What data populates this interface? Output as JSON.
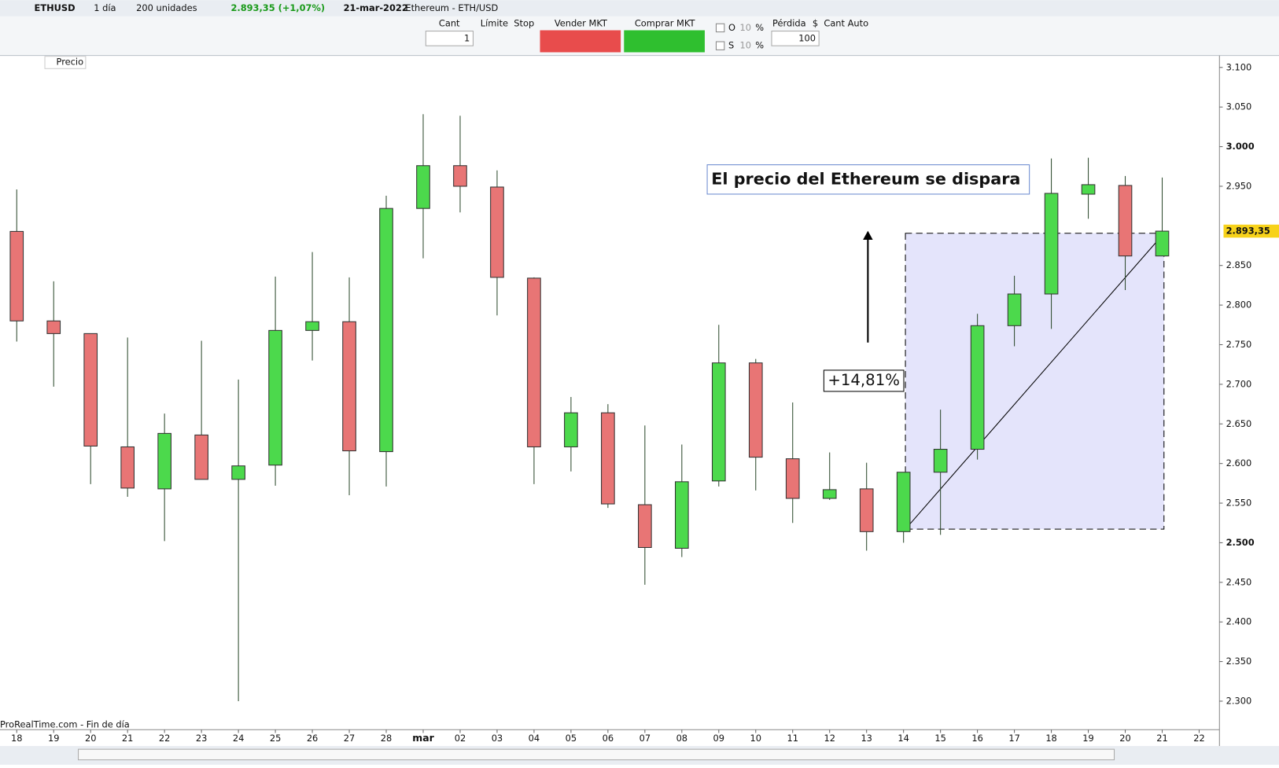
{
  "toolbar": {
    "symbol": "ETHUSD",
    "period": "1 día",
    "units": "200 unidades",
    "quote": "2.893,35 (+1,07%)",
    "date": "21-mar-2022",
    "instrument": "Ethereum - ETH/USD",
    "qty_label": "Cant",
    "qty": "1",
    "limit": "Límite",
    "stop": "Stop",
    "sell": "Vender MKT",
    "buy": "Comprar MKT",
    "o": "O",
    "o_pct": "10",
    "o_unit": "%",
    "s": "S",
    "s_pct": "10",
    "s_unit": "%",
    "loss": "Pérdida",
    "currency": "$",
    "loss_value": "100",
    "auto_qty": "Cant Auto",
    "price_tab": "Precio"
  },
  "chart_data": {
    "type": "candlestick",
    "categories": [
      "18",
      "19",
      "20",
      "21",
      "22",
      "23",
      "24",
      "25",
      "26",
      "27",
      "28",
      "mar",
      "02",
      "03",
      "04",
      "05",
      "06",
      "07",
      "08",
      "09",
      "10",
      "11",
      "12",
      "13",
      "14",
      "15",
      "16",
      "17",
      "18",
      "19",
      "20",
      "21",
      "22"
    ],
    "open": [
      2893,
      2780,
      2764,
      2621,
      2568,
      2636,
      2580,
      2598,
      2768,
      2779,
      2615,
      2922,
      2976,
      2949,
      2834,
      2621,
      2664,
      2548,
      2493,
      2578,
      2727,
      2606,
      2556,
      2568,
      2514,
      2589,
      2618,
      2774,
      2814,
      2940,
      2951,
      2862,
      null
    ],
    "high": [
      2946,
      2830,
      2764,
      2759,
      2663,
      2755,
      2706,
      2836,
      2867,
      2835,
      2938,
      3041,
      3039,
      2970,
      2835,
      2684,
      2675,
      2648,
      2624,
      2775,
      2732,
      2677,
      2614,
      2601,
      2589,
      2668,
      2789,
      2837,
      2985,
      2986,
      2963,
      2961,
      null
    ],
    "low": [
      2754,
      2697,
      2574,
      2558,
      2502,
      2580,
      2300,
      2572,
      2730,
      2560,
      2571,
      2859,
      2917,
      2787,
      2574,
      2590,
      2544,
      2447,
      2482,
      2571,
      2566,
      2525,
      2554,
      2490,
      2500,
      2510,
      2605,
      2748,
      2770,
      2909,
      2819,
      2862,
      null
    ],
    "close": [
      2780,
      2764,
      2622,
      2569,
      2638,
      2580,
      2597,
      2768,
      2779,
      2616,
      2922,
      2976,
      2950,
      2835,
      2621,
      2664,
      2549,
      2494,
      2577,
      2727,
      2608,
      2556,
      2567,
      2514,
      2589,
      2618,
      2774,
      2814,
      2941,
      2952,
      2862,
      2893.35,
      null
    ],
    "up_color": "#4cd94c",
    "down_color": "#e87575",
    "last_price_label": "2.893,35",
    "ylim": [
      2264,
      3115
    ],
    "yticks": [
      {
        "value": 2300,
        "label": "2.300"
      },
      {
        "value": 2350,
        "label": "2.350"
      },
      {
        "value": 2400,
        "label": "2.400"
      },
      {
        "value": 2450,
        "label": "2.450"
      },
      {
        "value": 2500,
        "label": "2.500"
      },
      {
        "value": 2550,
        "label": "2.550"
      },
      {
        "value": 2600,
        "label": "2.600"
      },
      {
        "value": 2650,
        "label": "2.650"
      },
      {
        "value": 2700,
        "label": "2.700"
      },
      {
        "value": 2750,
        "label": "2.750"
      },
      {
        "value": 2800,
        "label": "2.800"
      },
      {
        "value": 2850,
        "label": "2.850"
      },
      {
        "value": 2950,
        "label": "2.950"
      },
      {
        "value": 3000,
        "label": "3.000"
      },
      {
        "value": 3050,
        "label": "3.050"
      },
      {
        "value": 3100,
        "label": "3.100"
      }
    ],
    "annotations": {
      "headline": "El precio del Ethereum se dispara",
      "change": "+14,81%"
    },
    "footer": "ProRealTime.com - Fin de día"
  }
}
